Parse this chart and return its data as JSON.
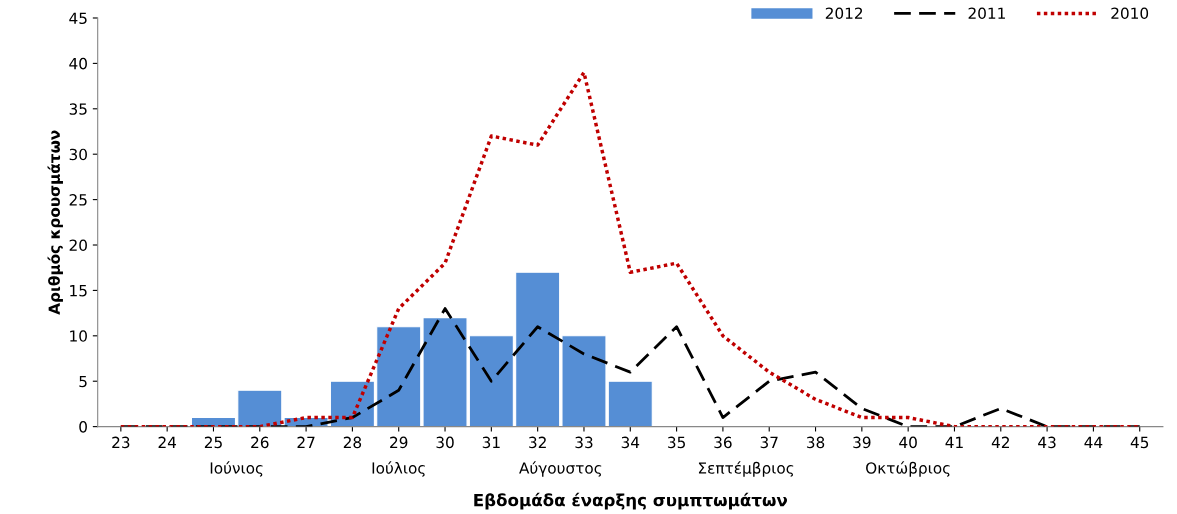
{
  "chart_data": {
    "type": "bar",
    "xlabel": "Εβδομάδα έναρξης συμπτωμάτων",
    "ylabel": "Αριθμός κρουσμάτων",
    "categories": [
      "23",
      "24",
      "25",
      "26",
      "27",
      "28",
      "29",
      "30",
      "31",
      "32",
      "33",
      "34",
      "35",
      "36",
      "37",
      "38",
      "39",
      "40",
      "41",
      "42",
      "43",
      "44",
      "45"
    ],
    "series": [
      {
        "name": "2012",
        "color": "#558ed5",
        "values": [
          null,
          null,
          1,
          4,
          1,
          5,
          11,
          12,
          10,
          17,
          10,
          5,
          null,
          null,
          null,
          null,
          null,
          null,
          null,
          null,
          null,
          null,
          null
        ]
      },
      {
        "name": "2011",
        "type": "line",
        "color": "#000000",
        "line_style": "dashed",
        "values": [
          0,
          0,
          0,
          0,
          0,
          1,
          4,
          13,
          5,
          11,
          8,
          6,
          11,
          1,
          5,
          6,
          2,
          0,
          0,
          2,
          0,
          0,
          0
        ]
      },
      {
        "name": "2010",
        "type": "line",
        "color": "#c00000",
        "line_style": "dotted",
        "values": [
          0,
          0,
          0,
          0,
          1,
          1,
          13,
          18,
          32,
          31,
          39,
          17,
          18,
          10,
          6,
          3,
          1,
          1,
          0,
          0,
          0,
          0,
          0
        ]
      }
    ],
    "annotations": [
      "Ιούνιος",
      "Ιούλιος",
      "Αύγουστος",
      "Σεπτέμβριος",
      "Οκτώβριος"
    ],
    "ylim": [
      0,
      45
    ],
    "yticks": [
      0,
      5,
      10,
      15,
      20,
      25,
      30,
      35,
      40,
      45
    ],
    "grid": false,
    "legend": "top right",
    "marker": "none"
  }
}
